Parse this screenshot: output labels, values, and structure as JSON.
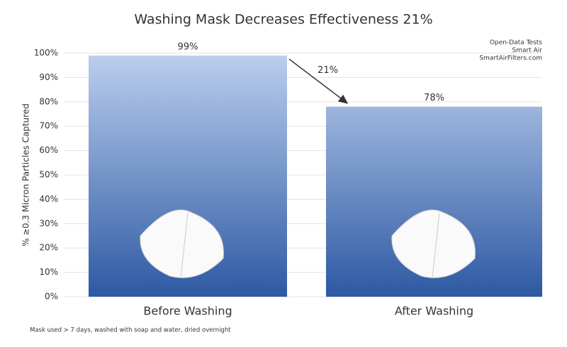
{
  "chart_data": {
    "type": "bar",
    "title": "Washing Mask Decreases Effectiveness 21%",
    "source": [
      "Open-Data Tests",
      "Smart Air",
      "SmartAirFilters.com"
    ],
    "y_label": "% ≥0.3 Micron Particles Captured",
    "categories": [
      "Before Washing",
      "After Washing"
    ],
    "values": [
      99,
      78
    ],
    "value_labels": [
      "99%",
      "78%"
    ],
    "annotation": "21%",
    "footnote": "Mask used > 7 days, washed with soap and water, dried overnight",
    "color": [
      "#bccfee",
      "#2d59a3"
    ],
    "ylim": [
      0,
      100
    ],
    "yticks": [
      {
        "value": 0,
        "label": "0%"
      },
      {
        "value": 10,
        "label": "10%"
      },
      {
        "value": 20,
        "label": "20%"
      },
      {
        "value": 30,
        "label": "30%"
      },
      {
        "value": 40,
        "label": "40%"
      },
      {
        "value": 50,
        "label": "50%"
      },
      {
        "value": 60,
        "label": "60%"
      },
      {
        "value": 70,
        "label": "70%"
      },
      {
        "value": 80,
        "label": "80%"
      },
      {
        "value": 90,
        "label": "90%"
      },
      {
        "value": 100,
        "label": "100%"
      }
    ],
    "grid": true
  }
}
